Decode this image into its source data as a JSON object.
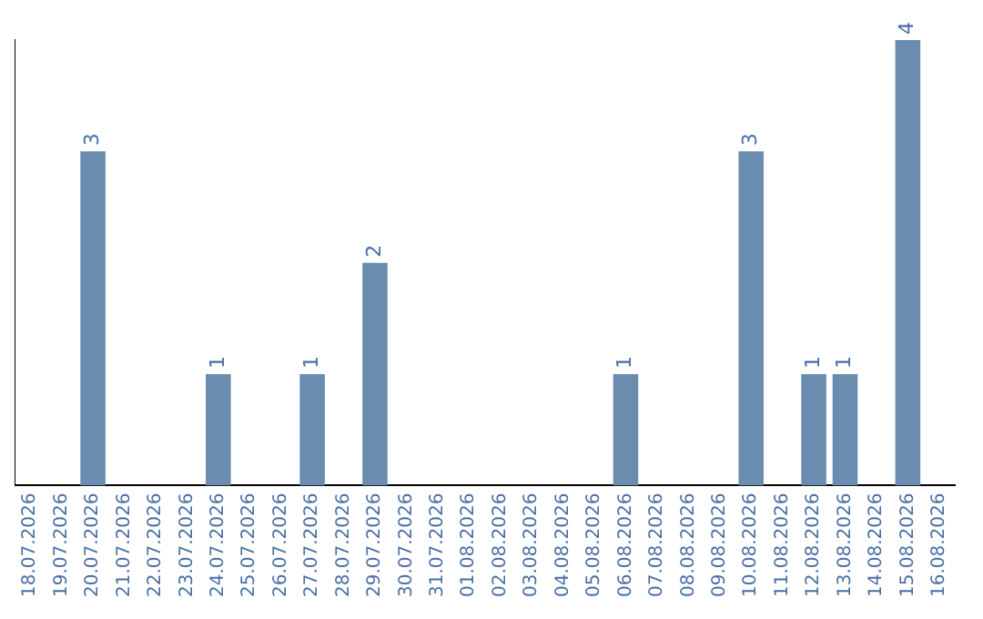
{
  "chart_data": {
    "type": "bar",
    "categories": [
      "18.07.2026",
      "19.07.2026",
      "20.07.2026",
      "21.07.2026",
      "22.07.2026",
      "23.07.2026",
      "24.07.2026",
      "25.07.2026",
      "26.07.2026",
      "27.07.2026",
      "28.07.2026",
      "29.07.2026",
      "30.07.2026",
      "31.07.2026",
      "01.08.2026",
      "02.08.2026",
      "03.08.2026",
      "04.08.2026",
      "05.08.2026",
      "06.08.2026",
      "07.08.2026",
      "08.08.2026",
      "09.08.2026",
      "10.08.2026",
      "11.08.2026",
      "12.08.2026",
      "13.08.2026",
      "14.08.2026",
      "15.08.2026",
      "16.08.2026"
    ],
    "values": [
      0,
      0,
      3,
      0,
      0,
      0,
      1,
      0,
      0,
      1,
      0,
      2,
      0,
      0,
      0,
      0,
      0,
      0,
      0,
      1,
      0,
      0,
      0,
      3,
      0,
      1,
      1,
      0,
      4,
      0
    ],
    "value_labels": [
      null,
      null,
      "3",
      null,
      null,
      null,
      "1",
      null,
      null,
      "1",
      null,
      "2",
      null,
      null,
      null,
      null,
      null,
      null,
      null,
      "1",
      null,
      null,
      null,
      "3",
      null,
      "1",
      "1",
      null,
      "4",
      null
    ],
    "color": "#6a8caf",
    "grid": false,
    "legend": false
  }
}
